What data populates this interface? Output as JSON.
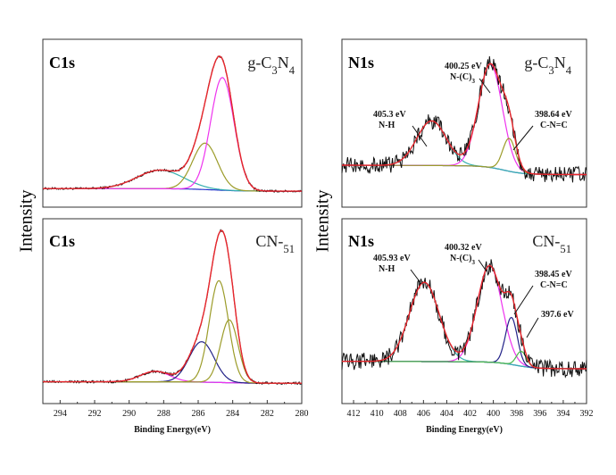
{
  "figure": {
    "ylabel": "Intensity",
    "xlabel": "Binding Energy(eV)"
  },
  "colors": {
    "raw": "#111111",
    "envelope": "#e8262c",
    "background": "#2233cc",
    "magenta": "#ee33ee",
    "olive": "#9c9c2a",
    "teal": "#36b0b0",
    "navy": "#222288",
    "green": "#4bb84b"
  },
  "chart_data": [
    {
      "id": "c1s-gcn",
      "type": "line",
      "title": "C1s",
      "sample": "g-C3N4",
      "xlabel": "",
      "ylabel": "Intensity",
      "xlim": [
        295,
        280
      ],
      "x_ticks": [],
      "peaks": [
        {
          "name": "",
          "center": 288.2,
          "height": 0.14,
          "fwhm": 3.2,
          "color": "teal"
        },
        {
          "name": "",
          "center": 285.6,
          "height": 0.35,
          "fwhm": 1.7,
          "color": "olive"
        },
        {
          "name": "",
          "center": 284.6,
          "height": 0.85,
          "fwhm": 1.6,
          "color": "magenta"
        }
      ],
      "background_levels": [
        0.02,
        0.0
      ],
      "annotations": []
    },
    {
      "id": "n1s-gcn",
      "type": "line",
      "title": "N1s",
      "sample": "g-C3N4",
      "xlabel": "",
      "ylabel": "",
      "xlim": [
        413,
        392
      ],
      "x_ticks": [],
      "peaks": [
        {
          "name": "",
          "center": 405.3,
          "height": 0.38,
          "fwhm": 3.0,
          "color": "teal"
        },
        {
          "name": "",
          "center": 400.25,
          "height": 0.88,
          "fwhm": 2.4,
          "color": "magenta"
        },
        {
          "name": "",
          "center": 398.64,
          "height": 0.28,
          "fwhm": 1.3,
          "color": "olive"
        }
      ],
      "background_levels": [
        0.1,
        0.02
      ],
      "annotations": [
        {
          "value": "405.3 eV",
          "label": "N-H"
        },
        {
          "value": "400.25 eV",
          "label": "N-(C)3"
        },
        {
          "value": "398.64 eV",
          "label": "C-N=C"
        }
      ]
    },
    {
      "id": "c1s-cn51",
      "type": "line",
      "title": "C1s",
      "sample": "CN-51",
      "xlabel": "Binding Energy(eV)",
      "ylabel": "",
      "xlim": [
        295,
        280
      ],
      "x_ticks": [
        294,
        292,
        290,
        288,
        286,
        284,
        282,
        280
      ],
      "peaks": [
        {
          "name": "",
          "center": 288.5,
          "height": 0.07,
          "fwhm": 2.0,
          "color": "magenta"
        },
        {
          "name": "",
          "center": 285.8,
          "height": 0.27,
          "fwhm": 1.7,
          "color": "navy"
        },
        {
          "name": "",
          "center": 284.8,
          "height": 0.68,
          "fwhm": 1.3,
          "color": "olive"
        },
        {
          "name": "",
          "center": 284.2,
          "height": 0.42,
          "fwhm": 1.2,
          "color": "olive"
        }
      ],
      "background_levels": [
        0.01,
        0.0
      ],
      "annotations": []
    },
    {
      "id": "n1s-cn51",
      "type": "line",
      "title": "N1s",
      "sample": "CN-51",
      "xlabel": "Binding Energy(eV)",
      "ylabel": "",
      "xlim": [
        413,
        392
      ],
      "x_ticks": [
        412,
        410,
        408,
        406,
        404,
        402,
        400,
        398,
        396,
        394,
        392
      ],
      "peaks": [
        {
          "name": "",
          "center": 405.93,
          "height": 0.64,
          "fwhm": 3.0,
          "color": "teal"
        },
        {
          "name": "",
          "center": 400.32,
          "height": 0.78,
          "fwhm": 2.5,
          "color": "magenta"
        },
        {
          "name": "",
          "center": 398.45,
          "height": 0.38,
          "fwhm": 1.2,
          "color": "navy"
        },
        {
          "name": "",
          "center": 397.6,
          "height": 0.12,
          "fwhm": 1.0,
          "color": "green"
        }
      ],
      "background_levels": [
        0.08,
        0.02
      ],
      "annotations": [
        {
          "value": "405.93 eV",
          "label": "N-H"
        },
        {
          "value": "400.32 eV",
          "label": "N-(C)3"
        },
        {
          "value": "398.45 eV",
          "label": "C-N=C"
        },
        {
          "value": "397.6 eV",
          "label": ""
        }
      ]
    }
  ]
}
